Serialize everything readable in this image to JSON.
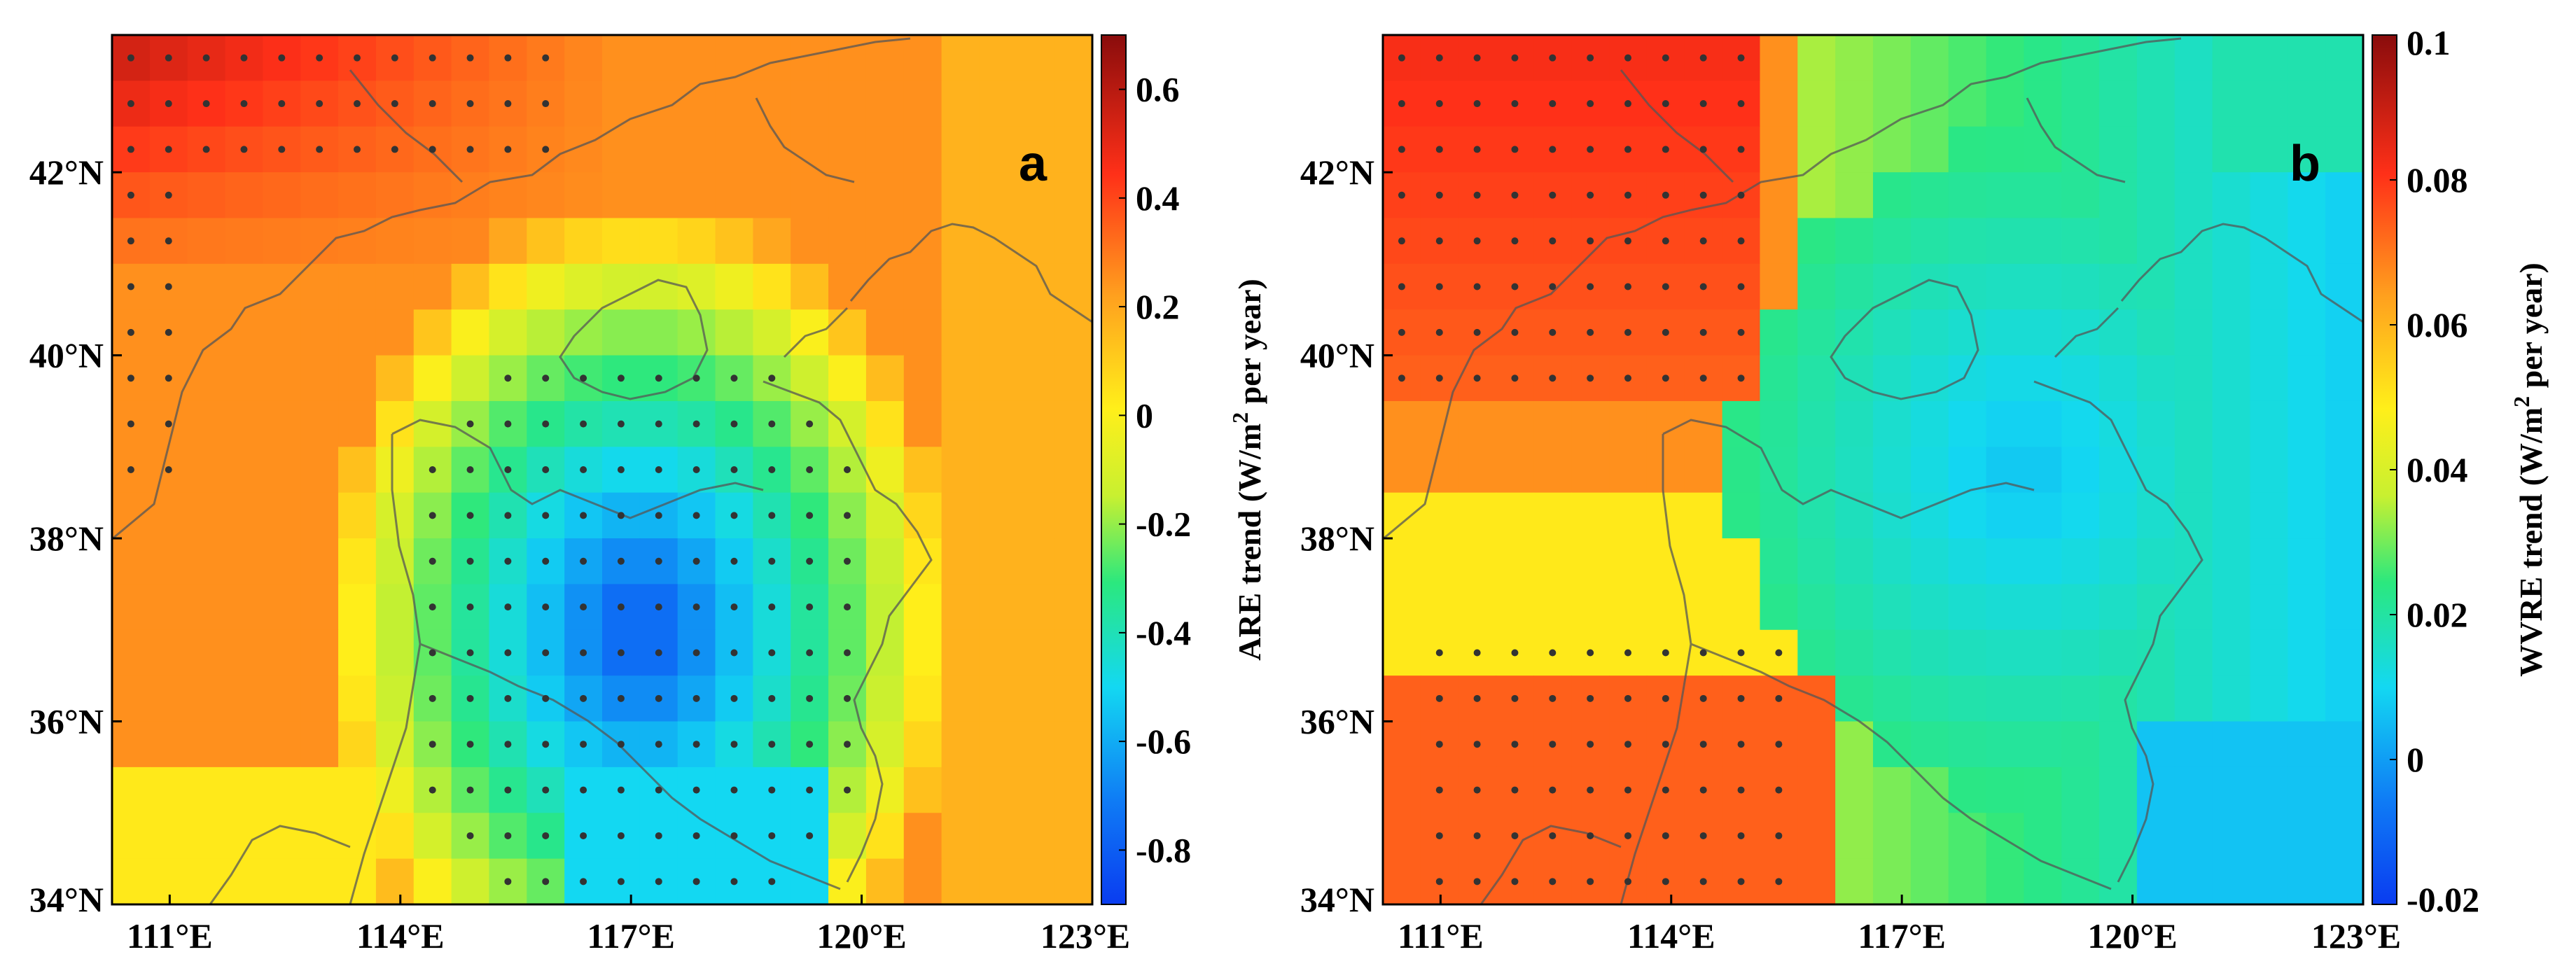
{
  "chart_data": [
    {
      "type": "heatmap",
      "panel_label": "a",
      "colorbar_label": "ARE trend (W/m",
      "colorbar_label_sup": "2",
      "colorbar_label_tail": " per year)",
      "xlabel": "",
      "ylabel": "",
      "x_ticks": [
        "111°E",
        "114°E",
        "117°E",
        "120°E",
        "123°E"
      ],
      "y_ticks": [
        "34°N",
        "36°N",
        "38°N",
        "40°N",
        "42°N"
      ],
      "colorbar_range": [
        -0.9,
        0.7
      ],
      "colorbar_ticks": [
        "-0.8",
        "-0.6",
        "-0.4",
        "-0.2",
        "0",
        "0.2",
        "0.4",
        "0.6"
      ],
      "colorbar_tick_values": [
        -0.8,
        -0.6,
        -0.4,
        -0.2,
        0,
        0.2,
        0.4,
        0.6
      ],
      "legend": "colorbar on the right"
    },
    {
      "type": "heatmap",
      "panel_label": "b",
      "colorbar_label": "WVRE trend (W/m",
      "colorbar_label_sup": "2",
      "colorbar_label_tail": " per year)",
      "xlabel": "",
      "ylabel": "",
      "x_ticks": [
        "111°E",
        "114°E",
        "117°E",
        "120°E",
        "123°E"
      ],
      "y_ticks": [
        "34°N",
        "36°N",
        "38°N",
        "40°N",
        "42°N"
      ],
      "colorbar_range": [
        -0.02,
        0.1
      ],
      "colorbar_ticks": [
        "-0.02",
        "0",
        "0.02",
        "0.04",
        "0.06",
        "0.08",
        "0.1"
      ],
      "colorbar_tick_values": [
        -0.02,
        0,
        0.02,
        0.04,
        0.06,
        0.08,
        0.1
      ],
      "legend": "colorbar on the right"
    }
  ]
}
